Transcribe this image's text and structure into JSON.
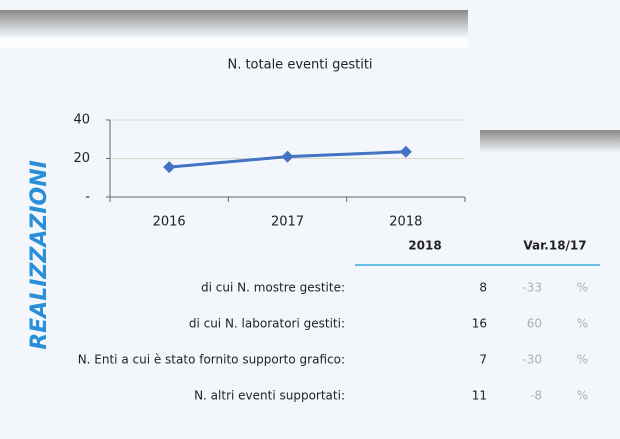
{
  "side_label": "REALIZZAZIONI",
  "chart_data": {
    "type": "line",
    "title": "N. totale eventi gestiti",
    "categories": [
      "2016",
      "2017",
      "2018"
    ],
    "series": [
      {
        "color": "#4472c4",
        "values": [
          15.5,
          21,
          23.5
        ]
      }
    ],
    "ylim": [
      0,
      40
    ],
    "yticks": [
      {
        "value": 0,
        "label": "-"
      },
      20,
      40
    ],
    "grid": true
  },
  "table": {
    "header": [
      "2018",
      "Var.18/17"
    ],
    "unit": "%",
    "rows": [
      [
        "di cui N. mostre gestite:",
        8,
        -33
      ],
      [
        "di cui N. laboratori gestiti:",
        16,
        60
      ],
      [
        "N. Enti a cui è stato fornito supporto grafico:",
        7,
        -30
      ],
      [
        "N. altri eventi supportati:",
        11,
        -8
      ]
    ]
  }
}
